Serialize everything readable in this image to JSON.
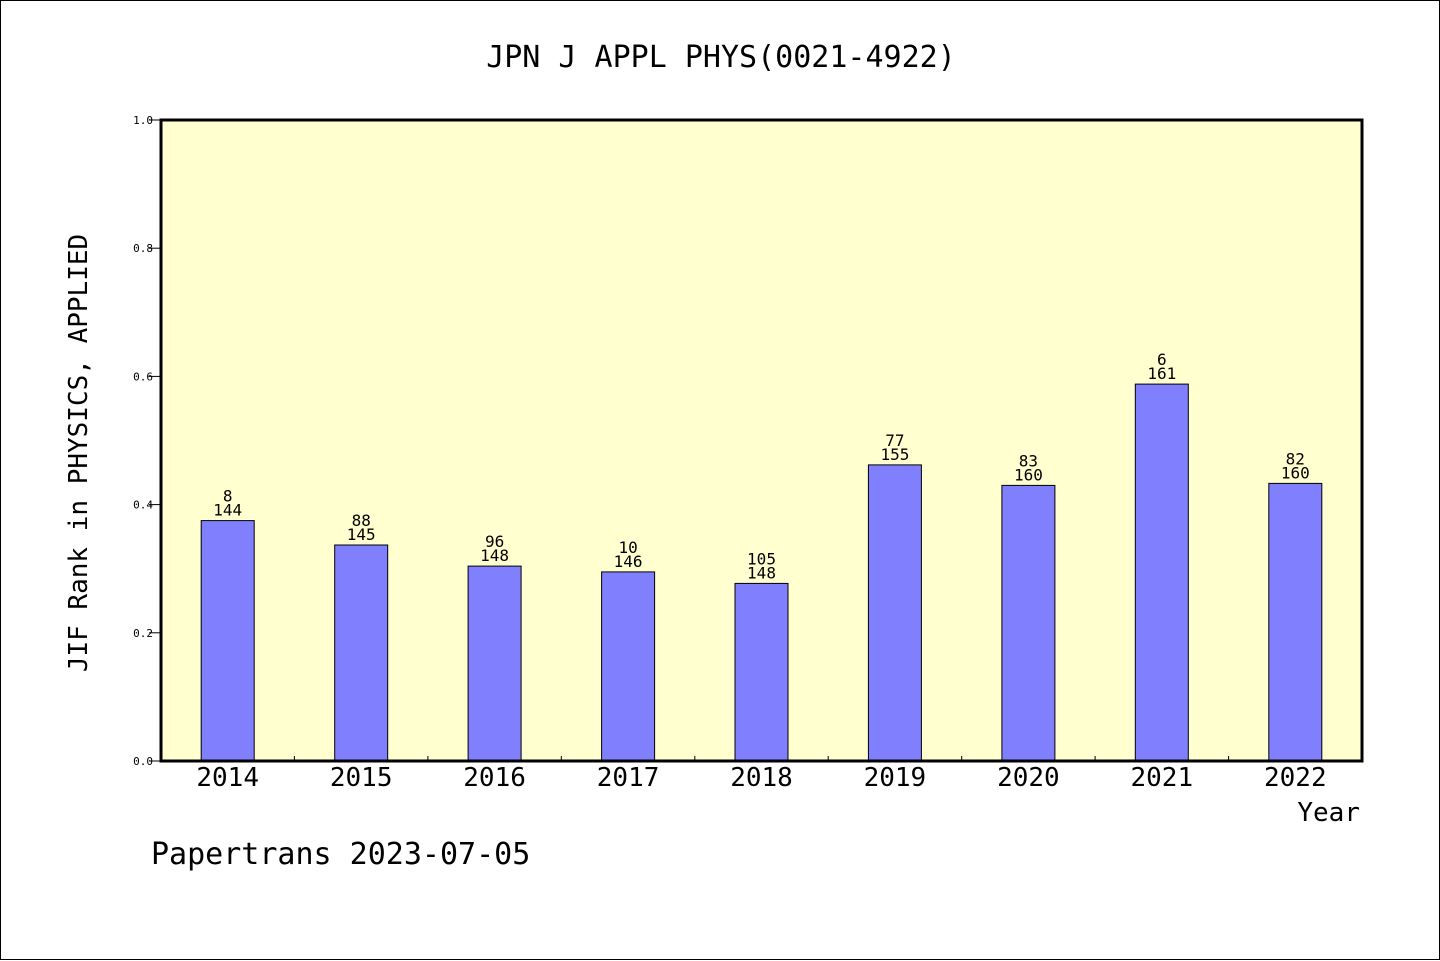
{
  "chart_data": {
    "type": "bar",
    "title": "JPN J APPL PHYS(0021-4922)",
    "xlabel": "Year",
    "ylabel": "JIF Rank in PHYSICS, APPLIED",
    "ylim": [
      0.0,
      1.0
    ],
    "yticks": [
      "0.0",
      "0.2",
      "0.4",
      "0.6",
      "0.8",
      "1.0"
    ],
    "categories": [
      "2014",
      "2015",
      "2016",
      "2017",
      "2018",
      "2019",
      "2020",
      "2021",
      "2022"
    ],
    "values": [
      0.375,
      0.337,
      0.304,
      0.295,
      0.277,
      0.462,
      0.43,
      0.588,
      0.433
    ],
    "rank_labels": [
      "8",
      "88",
      "96",
      "10",
      "105",
      "77",
      "83",
      "6",
      "82"
    ],
    "total_labels": [
      "144",
      "145",
      "148",
      "146",
      "148",
      "155",
      "160",
      "161",
      "160"
    ],
    "grid": false,
    "colors": {
      "plot_background": "#ffffd0",
      "bar_fill": "#8080ff",
      "bar_stroke": "#000000",
      "axis": "#000000"
    }
  },
  "footer": "Papertrans 2023-07-05"
}
